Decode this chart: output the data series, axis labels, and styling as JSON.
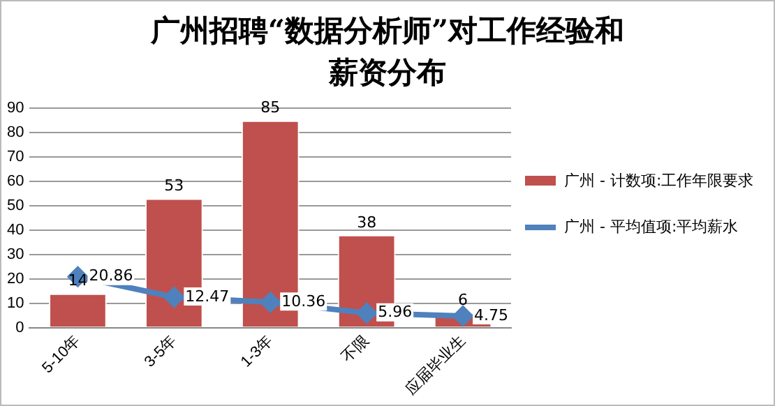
{
  "chart_data": {
    "type": "bar",
    "title": "广州招聘“数据分析师”对工作经验和薪资分布",
    "categories": [
      "5-10年",
      "3-5年",
      "1-3年",
      "不限",
      "应届毕业生"
    ],
    "series": [
      {
        "name": "广州 - 计数项:工作年限要求",
        "color": "#c0504d",
        "values": [
          14,
          53,
          85,
          38,
          6
        ]
      },
      {
        "name": "广州 - 平均值项:平均薪水",
        "type": "line",
        "color": "#4f81bd",
        "values": [
          20.86,
          12.47,
          10.36,
          5.96,
          4.75
        ]
      }
    ],
    "ylim": [
      0,
      90
    ],
    "yticks": [
      0,
      10,
      20,
      30,
      40,
      50,
      60,
      70,
      80,
      90
    ],
    "grid": "y",
    "legend": "right",
    "marker": "diamond",
    "data_labels": true
  }
}
